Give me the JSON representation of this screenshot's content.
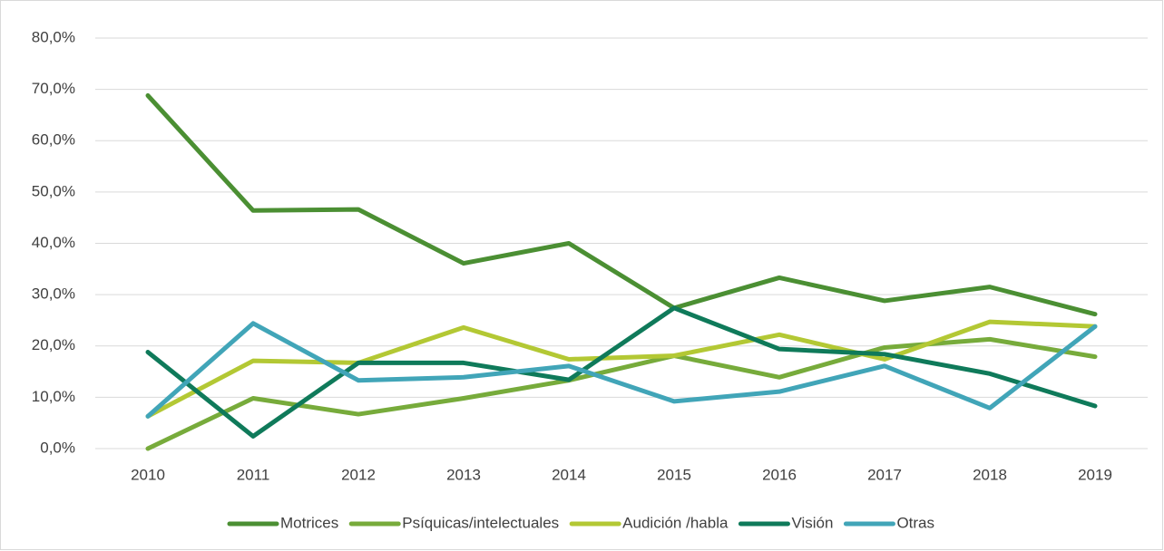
{
  "chart_data": {
    "type": "line",
    "categories": [
      "2010",
      "2011",
      "2012",
      "2013",
      "2014",
      "2015",
      "2016",
      "2017",
      "2018",
      "2019"
    ],
    "series": [
      {
        "name": "Motrices",
        "color": "#4b8f33",
        "values": [
          68.8,
          46.4,
          46.6,
          36.1,
          40.0,
          27.4,
          33.3,
          28.8,
          31.5,
          26.2
        ]
      },
      {
        "name": "Psíquicas/intelectuales",
        "color": "#77ab3b",
        "values": [
          0.0,
          9.8,
          6.7,
          9.8,
          13.3,
          18.1,
          13.9,
          19.7,
          21.3,
          17.9
        ]
      },
      {
        "name": "Audición /habla",
        "color": "#b3c834",
        "values": [
          6.3,
          17.1,
          16.7,
          23.6,
          17.4,
          18.1,
          22.2,
          17.4,
          24.7,
          23.8
        ]
      },
      {
        "name": "Visión",
        "color": "#0f7a5a",
        "values": [
          18.8,
          2.4,
          16.7,
          16.7,
          13.4,
          27.4,
          19.4,
          18.4,
          14.6,
          8.3
        ]
      },
      {
        "name": "Otras",
        "color": "#41a5b8",
        "values": [
          6.3,
          24.4,
          13.3,
          13.9,
          16.1,
          9.2,
          11.1,
          16.1,
          7.9,
          23.8
        ]
      }
    ],
    "ylim": [
      0,
      80
    ],
    "yticks": [
      {
        "value": 0,
        "label": "0,0%"
      },
      {
        "value": 10,
        "label": "10,0%"
      },
      {
        "value": 20,
        "label": "20,0%"
      },
      {
        "value": 30,
        "label": "30,0%"
      },
      {
        "value": 40,
        "label": "40,0%"
      },
      {
        "value": 50,
        "label": "50,0%"
      },
      {
        "value": 60,
        "label": "60,0%"
      },
      {
        "value": 70,
        "label": "70,0%"
      },
      {
        "value": 80,
        "label": "80,0%"
      }
    ],
    "grid": true,
    "legend": "bottom"
  }
}
